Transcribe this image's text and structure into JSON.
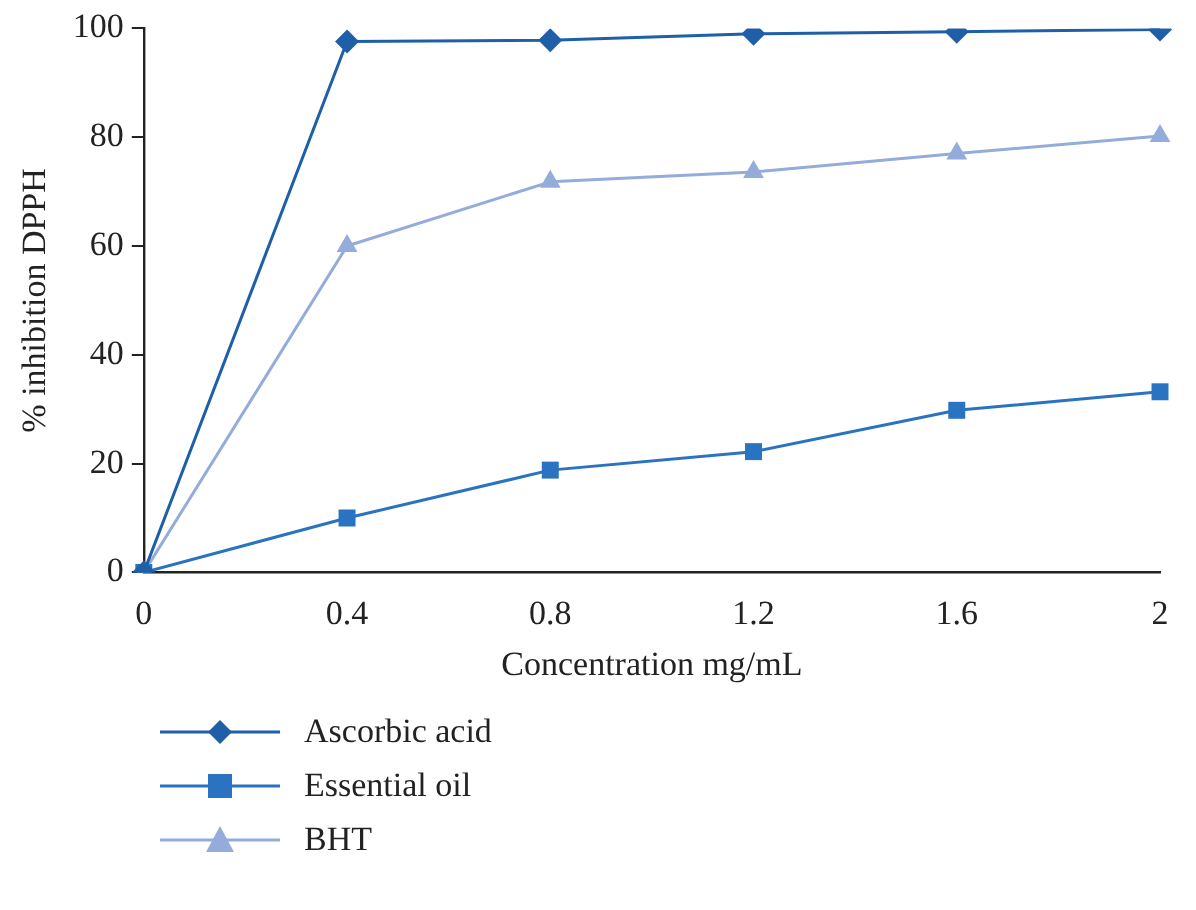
{
  "chart_data": {
    "type": "line",
    "xlabel": "Concentration mg/mL",
    "ylabel": "% inhibition DPPH",
    "categories": [
      "0",
      "0.4",
      "0.8",
      "1.2",
      "1.6",
      "2"
    ],
    "ylim": [
      0,
      100
    ],
    "yticks": [
      0,
      20,
      40,
      60,
      80,
      100
    ],
    "grid": false,
    "legend": "bottom left",
    "line_style": "solid",
    "series": [
      {
        "name": "Ascorbic acid",
        "color": "#1f5fa8",
        "marker": "diamond",
        "values": [
          0,
          97.6,
          97.8,
          99,
          99.4,
          99.8
        ]
      },
      {
        "name": "Essential oil",
        "color": "#2a73c0",
        "marker": "square",
        "values": [
          0,
          10,
          18.8,
          22.2,
          29.8,
          33.2
        ]
      },
      {
        "name": "BHT",
        "color": "#94acd9",
        "marker": "triangle",
        "values": [
          0,
          60,
          71.8,
          73.6,
          77,
          80.2
        ]
      }
    ]
  }
}
